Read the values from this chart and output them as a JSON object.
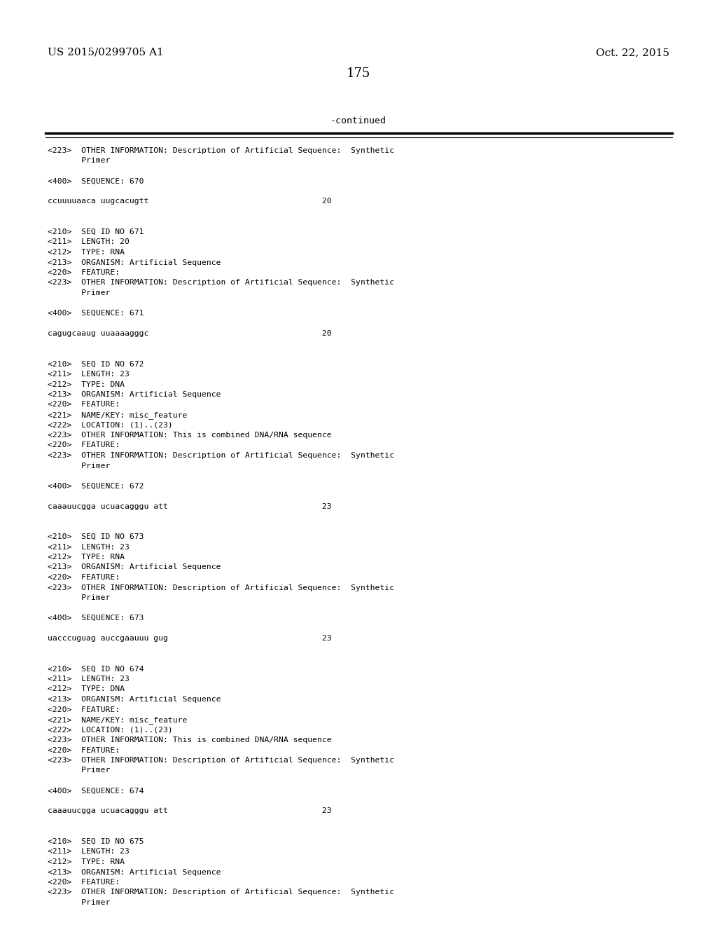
{
  "background_color": "#ffffff",
  "top_left_text": "US 2015/0299705 A1",
  "top_right_text": "Oct. 22, 2015",
  "page_number": "175",
  "continued_text": "-continued",
  "lines": [
    "<223>  OTHER INFORMATION: Description of Artificial Sequence:  Synthetic",
    "       Primer",
    "",
    "<400>  SEQUENCE: 670",
    "",
    "ccuuuuaaca uugcacugtt                                    20",
    "",
    "",
    "<210>  SEQ ID NO 671",
    "<211>  LENGTH: 20",
    "<212>  TYPE: RNA",
    "<213>  ORGANISM: Artificial Sequence",
    "<220>  FEATURE:",
    "<223>  OTHER INFORMATION: Description of Artificial Sequence:  Synthetic",
    "       Primer",
    "",
    "<400>  SEQUENCE: 671",
    "",
    "cagugcaaug uuaaaagggc                                    20",
    "",
    "",
    "<210>  SEQ ID NO 672",
    "<211>  LENGTH: 23",
    "<212>  TYPE: DNA",
    "<213>  ORGANISM: Artificial Sequence",
    "<220>  FEATURE:",
    "<221>  NAME/KEY: misc_feature",
    "<222>  LOCATION: (1)..(23)",
    "<223>  OTHER INFORMATION: This is combined DNA/RNA sequence",
    "<220>  FEATURE:",
    "<223>  OTHER INFORMATION: Description of Artificial Sequence:  Synthetic",
    "       Primer",
    "",
    "<400>  SEQUENCE: 672",
    "",
    "caaauucgga ucuacagggu att                                23",
    "",
    "",
    "<210>  SEQ ID NO 673",
    "<211>  LENGTH: 23",
    "<212>  TYPE: RNA",
    "<213>  ORGANISM: Artificial Sequence",
    "<220>  FEATURE:",
    "<223>  OTHER INFORMATION: Description of Artificial Sequence:  Synthetic",
    "       Primer",
    "",
    "<400>  SEQUENCE: 673",
    "",
    "uacccuguag auccgaauuu gug                                23",
    "",
    "",
    "<210>  SEQ ID NO 674",
    "<211>  LENGTH: 23",
    "<212>  TYPE: DNA",
    "<213>  ORGANISM: Artificial Sequence",
    "<220>  FEATURE:",
    "<221>  NAME/KEY: misc_feature",
    "<222>  LOCATION: (1)..(23)",
    "<223>  OTHER INFORMATION: This is combined DNA/RNA sequence",
    "<220>  FEATURE:",
    "<223>  OTHER INFORMATION: Description of Artificial Sequence:  Synthetic",
    "       Primer",
    "",
    "<400>  SEQUENCE: 674",
    "",
    "caaauucgga ucuacagggu att                                23",
    "",
    "",
    "<210>  SEQ ID NO 675",
    "<211>  LENGTH: 23",
    "<212>  TYPE: RNA",
    "<213>  ORGANISM: Artificial Sequence",
    "<220>  FEATURE:",
    "<223>  OTHER INFORMATION: Description of Artificial Sequence:  Synthetic",
    "       Primer"
  ]
}
